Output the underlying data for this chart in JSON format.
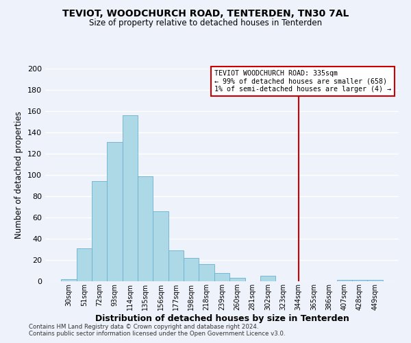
{
  "title": "TEVIOT, WOODCHURCH ROAD, TENTERDEN, TN30 7AL",
  "subtitle": "Size of property relative to detached houses in Tenterden",
  "xlabel": "Distribution of detached houses by size in Tenterden",
  "ylabel": "Number of detached properties",
  "bar_labels": [
    "30sqm",
    "51sqm",
    "72sqm",
    "93sqm",
    "114sqm",
    "135sqm",
    "156sqm",
    "177sqm",
    "198sqm",
    "218sqm",
    "239sqm",
    "260sqm",
    "281sqm",
    "302sqm",
    "323sqm",
    "344sqm",
    "365sqm",
    "386sqm",
    "407sqm",
    "428sqm",
    "449sqm"
  ],
  "bar_values": [
    2,
    31,
    94,
    131,
    156,
    99,
    66,
    29,
    22,
    16,
    8,
    3,
    0,
    5,
    0,
    0,
    0,
    0,
    1,
    1,
    1
  ],
  "bar_color": "#add8e6",
  "bar_edge_color": "#6ab0d4",
  "vline_index": 15,
  "vline_color": "#cc0000",
  "annotation_title": "TEVIOT WOODCHURCH ROAD: 335sqm",
  "annotation_line1": "← 99% of detached houses are smaller (658)",
  "annotation_line2": "1% of semi-detached houses are larger (4) →",
  "ylim": [
    0,
    200
  ],
  "yticks": [
    0,
    20,
    40,
    60,
    80,
    100,
    120,
    140,
    160,
    180,
    200
  ],
  "footer1": "Contains HM Land Registry data © Crown copyright and database right 2024.",
  "footer2": "Contains public sector information licensed under the Open Government Licence v3.0.",
  "background_color": "#eef2fb",
  "grid_color": "#ffffff"
}
